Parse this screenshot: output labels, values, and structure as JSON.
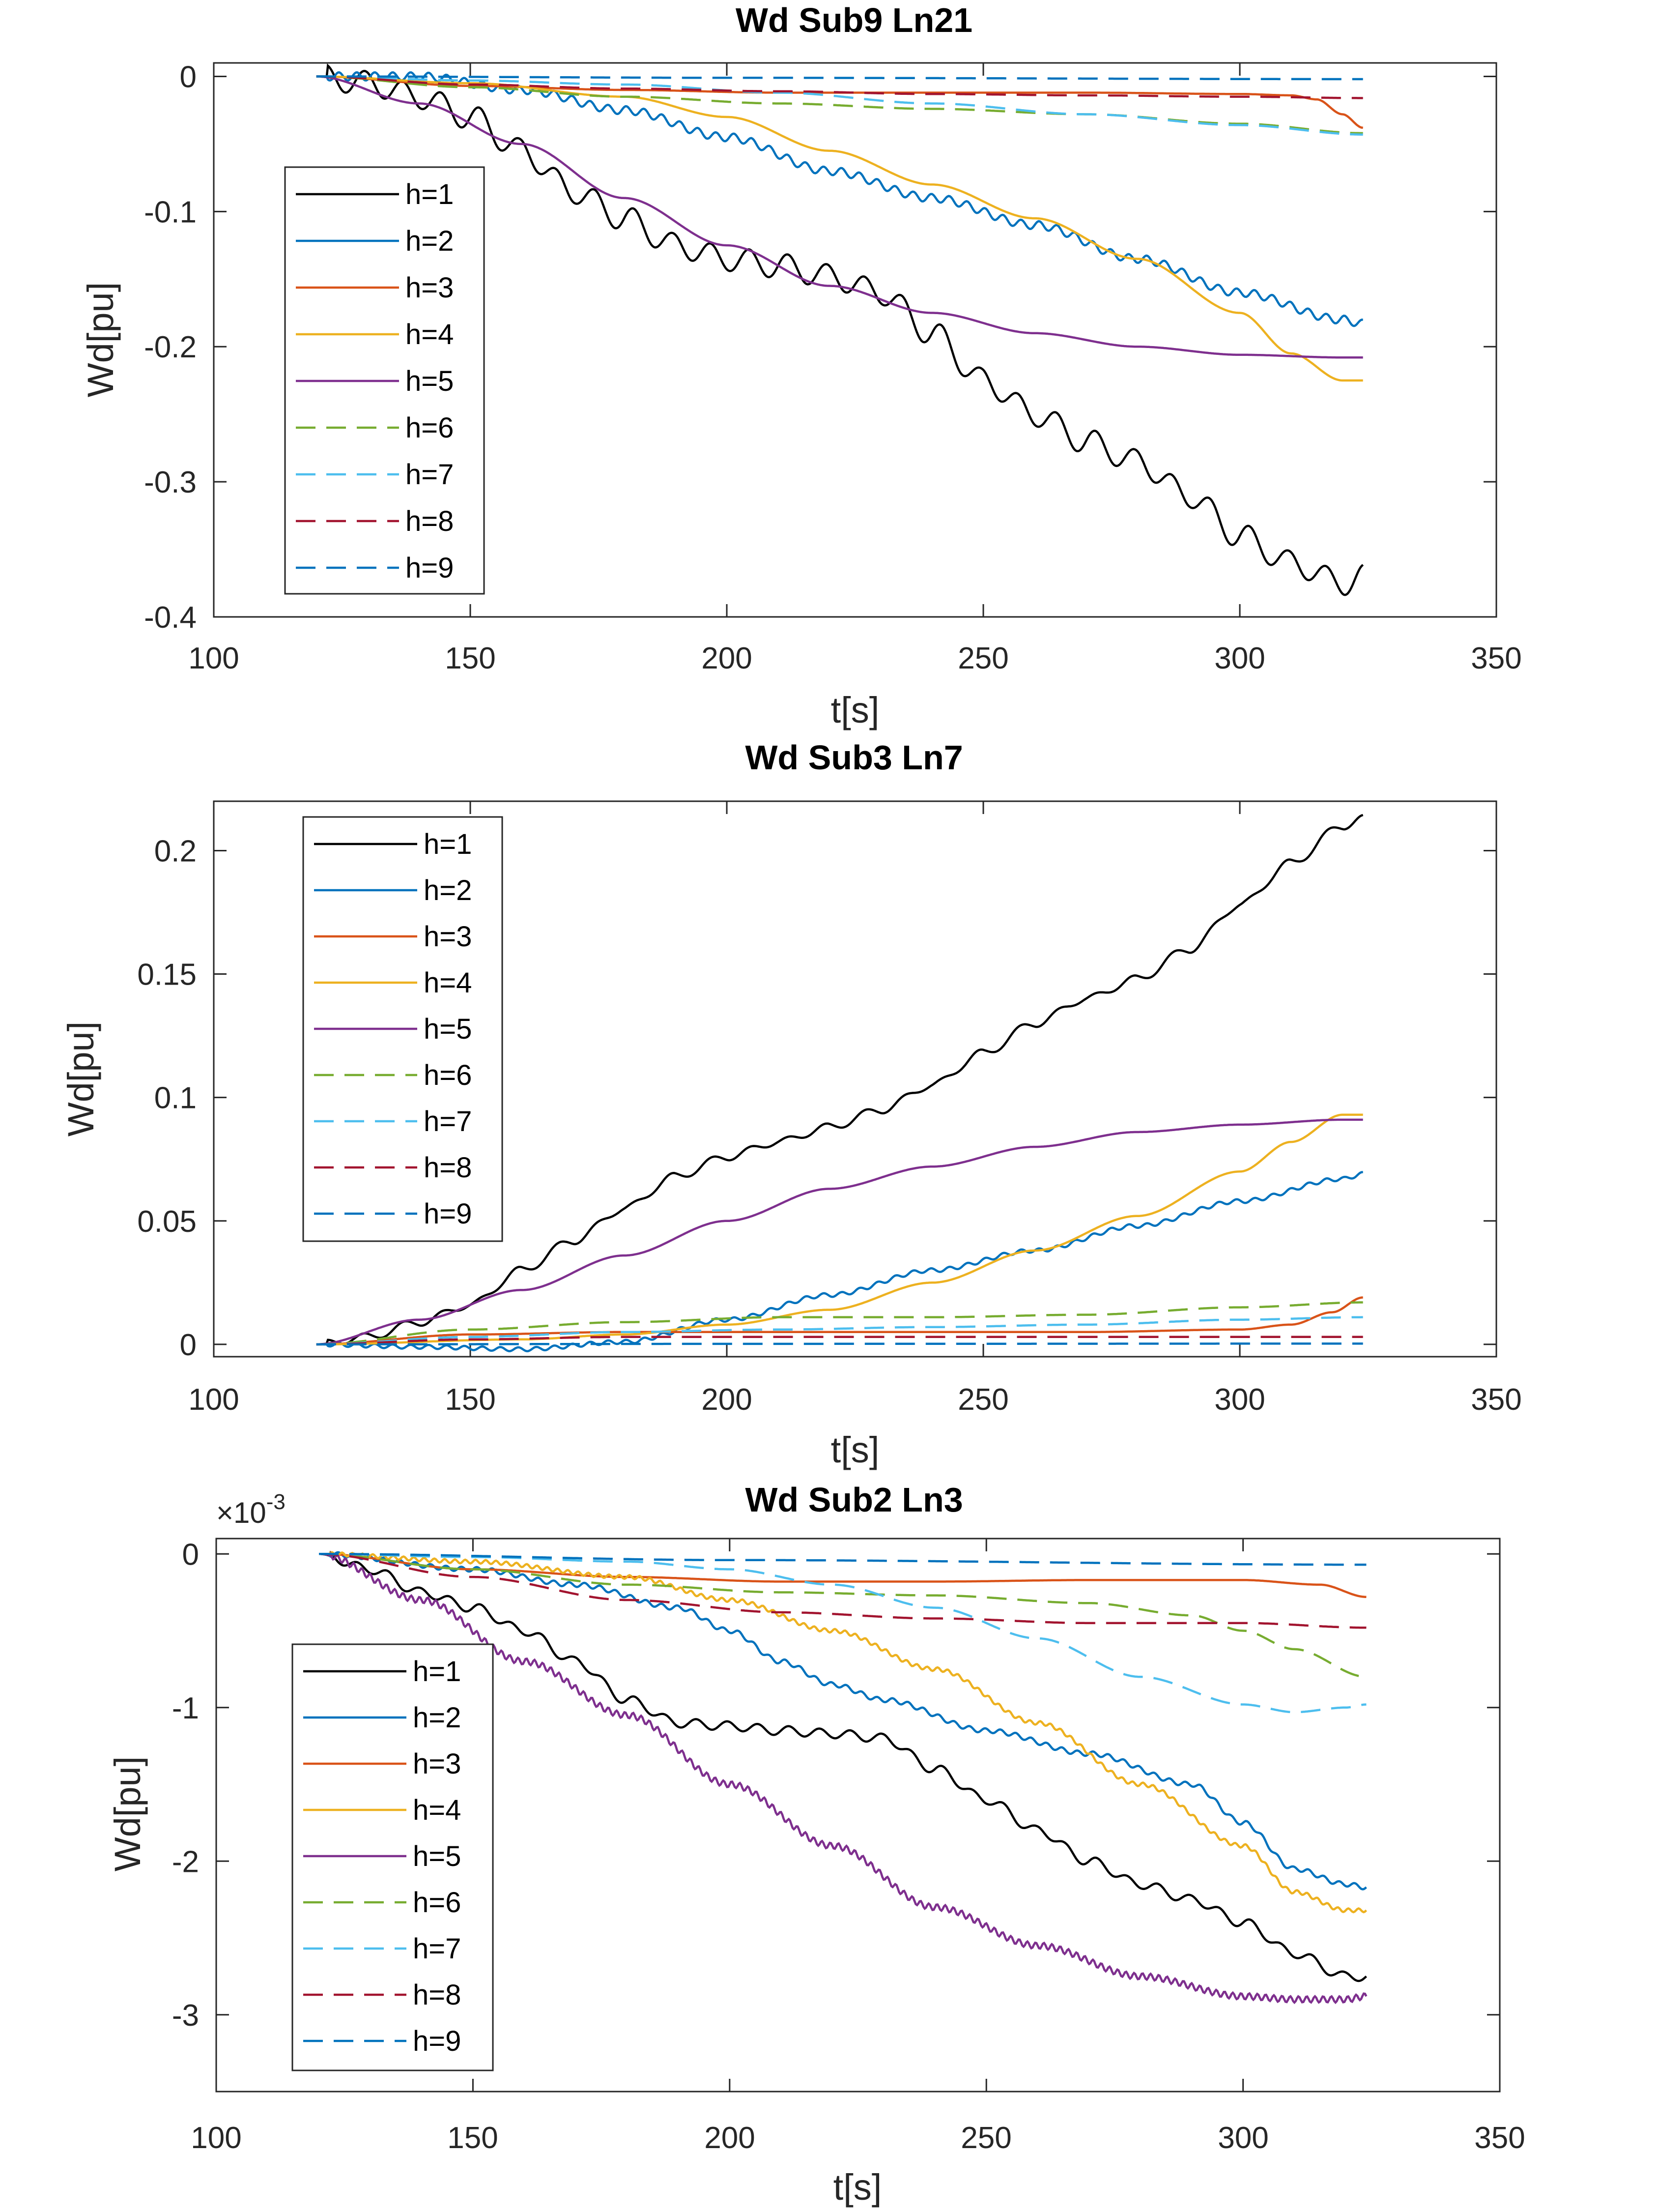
{
  "figure_title": "Wd Sub9 Ln21 / Wd Sub3 Ln7 / Wd Sub2 Ln3",
  "colors": {
    "h=1": "#000000",
    "h=2": "#0072BD",
    "h=3": "#D95319",
    "h=4": "#EDB120",
    "h=5": "#7E2F8E",
    "h=6": "#77AC30",
    "h=7": "#4DBEEE",
    "h=8": "#A2142F",
    "h=9": "#0072BD",
    "axes": "#262626",
    "background": "#ffffff"
  },
  "chart_data": [
    {
      "type": "line",
      "title": "Wd Sub9 Ln21",
      "xlabel": "t[s]",
      "ylabel": "Wd[pu]",
      "xlim": [
        100,
        350
      ],
      "ylim": [
        -0.4,
        0.01
      ],
      "xticks": [
        "100",
        "150",
        "200",
        "250",
        "300",
        "350"
      ],
      "yticks": [
        {
          "value": 0,
          "label": "0"
        },
        {
          "value": -0.1,
          "label": "-0.1"
        },
        {
          "value": -0.2,
          "label": "-0.2"
        },
        {
          "value": -0.3,
          "label": "-0.3"
        },
        {
          "value": -0.4,
          "label": "-0.4"
        }
      ],
      "exponent_label": "",
      "legend": {
        "position": "left-middle",
        "entries": [
          "h=1",
          "h=2",
          "h=3",
          "h=4",
          "h=5",
          "h=6",
          "h=7",
          "h=8",
          "h=9"
        ]
      },
      "series": [
        {
          "name": "h=1",
          "style": "solid",
          "osc": [
            0.009,
            7.5
          ],
          "x": [
            120,
            130,
            140,
            150,
            160,
            170,
            180,
            190,
            200,
            210,
            220,
            230,
            240,
            250,
            260,
            270,
            280,
            290,
            300,
            310,
            320,
            324
          ],
          "y": [
            0,
            -0.005,
            -0.015,
            -0.03,
            -0.055,
            -0.085,
            -0.105,
            -0.125,
            -0.135,
            -0.14,
            -0.148,
            -0.16,
            -0.19,
            -0.225,
            -0.25,
            -0.27,
            -0.285,
            -0.31,
            -0.34,
            -0.36,
            -0.375,
            -0.37
          ]
        },
        {
          "name": "h=2",
          "style": "solid",
          "osc": [
            0.003,
            3.5
          ],
          "x": [
            120,
            140,
            160,
            180,
            200,
            220,
            240,
            260,
            280,
            300,
            320,
            324
          ],
          "y": [
            0,
            0,
            -0.01,
            -0.025,
            -0.045,
            -0.07,
            -0.09,
            -0.11,
            -0.135,
            -0.16,
            -0.18,
            -0.183
          ]
        },
        {
          "name": "h=3",
          "style": "solid",
          "osc": [
            0,
            0
          ],
          "x": [
            120,
            150,
            180,
            210,
            240,
            270,
            300,
            310,
            315,
            320,
            324
          ],
          "y": [
            0,
            -0.007,
            -0.01,
            -0.012,
            -0.012,
            -0.012,
            -0.013,
            -0.014,
            -0.017,
            -0.028,
            -0.038
          ]
        },
        {
          "name": "h=4",
          "style": "solid",
          "osc": [
            0,
            0
          ],
          "x": [
            120,
            150,
            180,
            200,
            220,
            240,
            260,
            280,
            300,
            310,
            320,
            324
          ],
          "y": [
            0,
            -0.005,
            -0.015,
            -0.03,
            -0.055,
            -0.08,
            -0.105,
            -0.135,
            -0.175,
            -0.205,
            -0.225,
            -0.225
          ]
        },
        {
          "name": "h=5",
          "style": "solid",
          "osc": [
            0,
            0
          ],
          "x": [
            120,
            140,
            160,
            180,
            200,
            220,
            240,
            260,
            280,
            300,
            320,
            324
          ],
          "y": [
            0,
            -0.02,
            -0.05,
            -0.09,
            -0.125,
            -0.155,
            -0.175,
            -0.19,
            -0.2,
            -0.206,
            -0.208,
            -0.208
          ]
        },
        {
          "name": "h=6",
          "style": "dashed",
          "osc": [
            0,
            0
          ],
          "x": [
            120,
            150,
            180,
            210,
            240,
            270,
            300,
            324
          ],
          "y": [
            0,
            -0.008,
            -0.015,
            -0.02,
            -0.024,
            -0.028,
            -0.035,
            -0.042
          ]
        },
        {
          "name": "h=7",
          "style": "dashed",
          "osc": [
            0,
            0
          ],
          "x": [
            120,
            150,
            180,
            210,
            240,
            270,
            300,
            324
          ],
          "y": [
            0,
            -0.003,
            -0.006,
            -0.012,
            -0.02,
            -0.028,
            -0.036,
            -0.043
          ]
        },
        {
          "name": "h=8",
          "style": "dashed",
          "osc": [
            0,
            0
          ],
          "x": [
            120,
            150,
            180,
            210,
            240,
            270,
            300,
            324
          ],
          "y": [
            0,
            -0.006,
            -0.009,
            -0.011,
            -0.013,
            -0.014,
            -0.015,
            -0.016
          ]
        },
        {
          "name": "h=9",
          "style": "dashed",
          "osc": [
            0,
            0
          ],
          "x": [
            120,
            200,
            324
          ],
          "y": [
            0,
            -0.001,
            -0.002
          ]
        }
      ]
    },
    {
      "type": "line",
      "title": "Wd Sub3 Ln7",
      "xlabel": "t[s]",
      "ylabel": "Wd[pu]",
      "xlim": [
        100,
        350
      ],
      "ylim": [
        -0.005,
        0.22
      ],
      "xticks": [
        "100",
        "150",
        "200",
        "250",
        "300",
        "350"
      ],
      "yticks": [
        {
          "value": 0,
          "label": "0"
        },
        {
          "value": 0.05,
          "label": "0.05"
        },
        {
          "value": 0.1,
          "label": "0.1"
        },
        {
          "value": 0.15,
          "label": "0.15"
        },
        {
          "value": 0.2,
          "label": "0.2"
        }
      ],
      "exponent_label": "",
      "legend": {
        "position": "top-left",
        "entries": [
          "h=1",
          "h=2",
          "h=3",
          "h=4",
          "h=5",
          "h=6",
          "h=7",
          "h=8",
          "h=9"
        ]
      },
      "series": [
        {
          "name": "h=1",
          "style": "solid",
          "osc": [
            0.0015,
            7.5
          ],
          "x": [
            120,
            130,
            140,
            150,
            160,
            170,
            180,
            190,
            200,
            210,
            220,
            230,
            240,
            250,
            260,
            270,
            280,
            290,
            300,
            310,
            320,
            324
          ],
          "y": [
            0,
            0.003,
            0.009,
            0.016,
            0.03,
            0.042,
            0.055,
            0.068,
            0.076,
            0.082,
            0.088,
            0.095,
            0.105,
            0.118,
            0.13,
            0.14,
            0.148,
            0.16,
            0.178,
            0.195,
            0.21,
            0.213
          ]
        },
        {
          "name": "h=2",
          "style": "solid",
          "osc": [
            0.0008,
            3.5
          ],
          "x": [
            120,
            140,
            160,
            180,
            200,
            220,
            240,
            260,
            280,
            300,
            320,
            324
          ],
          "y": [
            0,
            -0.001,
            -0.002,
            0.001,
            0.01,
            0.02,
            0.03,
            0.038,
            0.048,
            0.058,
            0.067,
            0.069
          ]
        },
        {
          "name": "h=3",
          "style": "solid",
          "osc": [
            0,
            0
          ],
          "x": [
            120,
            150,
            180,
            210,
            240,
            270,
            300,
            310,
            318,
            324
          ],
          "y": [
            0,
            0.004,
            0.005,
            0.005,
            0.005,
            0.005,
            0.006,
            0.008,
            0.013,
            0.019
          ]
        },
        {
          "name": "h=4",
          "style": "solid",
          "osc": [
            0,
            0
          ],
          "x": [
            120,
            160,
            180,
            200,
            220,
            240,
            260,
            280,
            300,
            310,
            320,
            324
          ],
          "y": [
            0,
            0.002,
            0.004,
            0.008,
            0.014,
            0.025,
            0.038,
            0.052,
            0.07,
            0.082,
            0.093,
            0.093
          ]
        },
        {
          "name": "h=5",
          "style": "solid",
          "osc": [
            0,
            0
          ],
          "x": [
            120,
            140,
            160,
            180,
            200,
            220,
            240,
            260,
            280,
            300,
            320,
            324
          ],
          "y": [
            0,
            0.01,
            0.022,
            0.036,
            0.05,
            0.063,
            0.072,
            0.08,
            0.086,
            0.089,
            0.091,
            0.091
          ]
        },
        {
          "name": "h=6",
          "style": "dashed",
          "osc": [
            0,
            0
          ],
          "x": [
            120,
            150,
            180,
            210,
            240,
            270,
            300,
            324
          ],
          "y": [
            0,
            0.006,
            0.009,
            0.011,
            0.011,
            0.012,
            0.015,
            0.017
          ]
        },
        {
          "name": "h=7",
          "style": "dashed",
          "osc": [
            0,
            0
          ],
          "x": [
            120,
            150,
            180,
            210,
            240,
            270,
            300,
            324
          ],
          "y": [
            0,
            0.003,
            0.005,
            0.006,
            0.007,
            0.008,
            0.01,
            0.011
          ]
        },
        {
          "name": "h=8",
          "style": "dashed",
          "osc": [
            0,
            0
          ],
          "x": [
            120,
            150,
            180,
            210,
            240,
            270,
            300,
            324
          ],
          "y": [
            0,
            0.002,
            0.003,
            0.003,
            0.003,
            0.003,
            0.003,
            0.003
          ]
        },
        {
          "name": "h=9",
          "style": "dashed",
          "osc": [
            0,
            0
          ],
          "x": [
            120,
            200,
            324
          ],
          "y": [
            0,
            0.0002,
            0.0003
          ]
        }
      ]
    },
    {
      "type": "line",
      "title": "Wd Sub2 Ln3",
      "xlabel": "t[s]",
      "ylabel": "Wd[pu]",
      "xlim": [
        100,
        350
      ],
      "ylim": [
        -3.5,
        0.1
      ],
      "xticks": [
        "100",
        "150",
        "200",
        "250",
        "300",
        "350"
      ],
      "yticks": [
        {
          "value": 0,
          "label": "0"
        },
        {
          "value": -1,
          "label": "-1"
        },
        {
          "value": -2,
          "label": "-2"
        },
        {
          "value": -3,
          "label": "-3"
        }
      ],
      "exponent_label": "×10",
      "exponent_power": "-3",
      "legend": {
        "position": "left-middle",
        "entries": [
          "h=1",
          "h=2",
          "h=3",
          "h=4",
          "h=5",
          "h=6",
          "h=7",
          "h=8",
          "h=9"
        ]
      },
      "series": [
        {
          "name": "h=1",
          "style": "solid",
          "osc": [
            0.03,
            6
          ],
          "x": [
            120,
            130,
            140,
            150,
            160,
            170,
            180,
            190,
            200,
            210,
            220,
            230,
            240,
            250,
            260,
            270,
            280,
            290,
            300,
            310,
            320,
            324
          ],
          "y": [
            0,
            -0.1,
            -0.25,
            -0.35,
            -0.5,
            -0.7,
            -0.95,
            -1.1,
            -1.12,
            -1.15,
            -1.17,
            -1.2,
            -1.4,
            -1.6,
            -1.8,
            -2.0,
            -2.15,
            -2.25,
            -2.4,
            -2.6,
            -2.75,
            -2.75
          ]
        },
        {
          "name": "h=2",
          "style": "solid",
          "osc": [
            0.015,
            3
          ],
          "x": [
            120,
            150,
            170,
            190,
            200,
            210,
            220,
            230,
            250,
            270,
            290,
            300,
            310,
            320,
            324
          ],
          "y": [
            0,
            -0.1,
            -0.2,
            -0.35,
            -0.5,
            -0.7,
            -0.85,
            -0.95,
            -1.15,
            -1.3,
            -1.5,
            -1.75,
            -2.05,
            -2.15,
            -2.17
          ]
        },
        {
          "name": "h=3",
          "style": "solid",
          "osc": [
            0,
            0
          ],
          "x": [
            120,
            150,
            180,
            210,
            240,
            270,
            300,
            315,
            324
          ],
          "y": [
            0,
            -0.1,
            -0.15,
            -0.18,
            -0.18,
            -0.17,
            -0.17,
            -0.2,
            -0.28
          ]
        },
        {
          "name": "h=4",
          "style": "solid",
          "osc": [
            0.012,
            2
          ],
          "x": [
            120,
            150,
            180,
            200,
            220,
            240,
            260,
            280,
            300,
            310,
            320,
            324
          ],
          "y": [
            0,
            -0.05,
            -0.15,
            -0.3,
            -0.5,
            -0.75,
            -1.1,
            -1.5,
            -1.9,
            -2.2,
            -2.32,
            -2.32
          ]
        },
        {
          "name": "h=5",
          "style": "solid",
          "osc": [
            0.02,
            1.6
          ],
          "x": [
            120,
            140,
            160,
            180,
            200,
            220,
            240,
            260,
            280,
            300,
            310,
            320,
            324
          ],
          "y": [
            0,
            -0.3,
            -0.7,
            -1.05,
            -1.5,
            -1.9,
            -2.3,
            -2.55,
            -2.75,
            -2.88,
            -2.9,
            -2.9,
            -2.88
          ]
        },
        {
          "name": "h=6",
          "style": "dashed",
          "osc": [
            0,
            0
          ],
          "x": [
            120,
            150,
            180,
            210,
            240,
            270,
            290,
            300,
            310,
            324
          ],
          "y": [
            0,
            -0.1,
            -0.2,
            -0.25,
            -0.27,
            -0.32,
            -0.4,
            -0.5,
            -0.62,
            -0.8
          ]
        },
        {
          "name": "h=7",
          "style": "dashed",
          "osc": [
            0,
            0
          ],
          "x": [
            120,
            150,
            180,
            200,
            220,
            240,
            260,
            280,
            300,
            310,
            320,
            324
          ],
          "y": [
            0,
            -0.02,
            -0.05,
            -0.1,
            -0.2,
            -0.35,
            -0.55,
            -0.8,
            -0.98,
            -1.03,
            -1.0,
            -0.98
          ]
        },
        {
          "name": "h=8",
          "style": "dashed",
          "osc": [
            0,
            0
          ],
          "x": [
            120,
            150,
            180,
            210,
            240,
            270,
            300,
            324
          ],
          "y": [
            0,
            -0.15,
            -0.3,
            -0.38,
            -0.42,
            -0.45,
            -0.45,
            -0.48
          ]
        },
        {
          "name": "h=9",
          "style": "dashed",
          "osc": [
            0,
            0
          ],
          "x": [
            120,
            200,
            324
          ],
          "y": [
            0,
            -0.04,
            -0.07
          ]
        }
      ]
    }
  ]
}
